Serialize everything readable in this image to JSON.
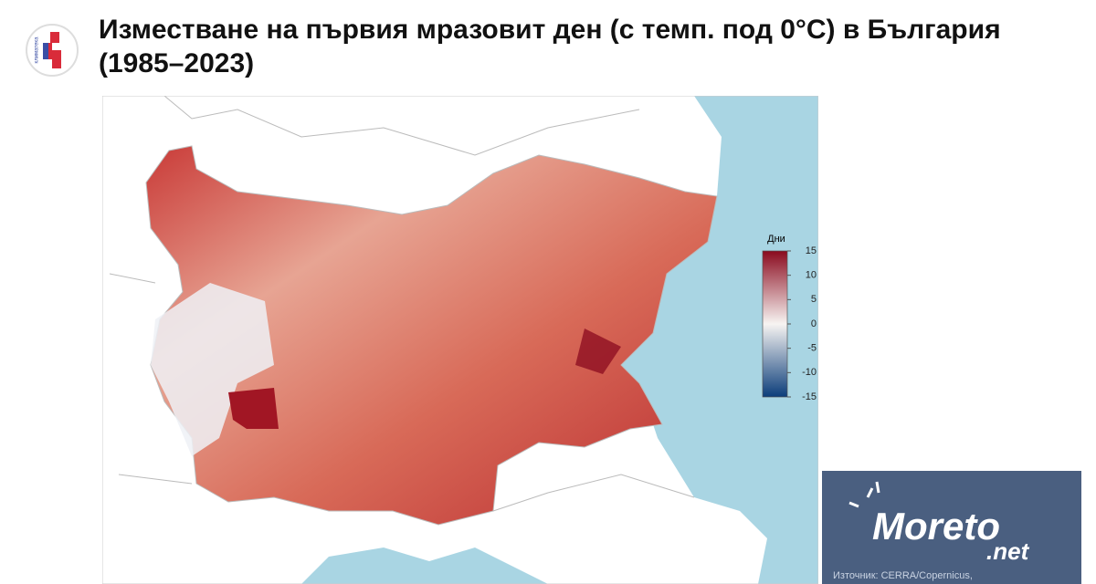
{
  "header": {
    "logo_text": "климатека",
    "title": "Изместване на първия мразовит ден (с темп. под 0°C) в България (1985–2023)"
  },
  "colorbar": {
    "title": "Дни",
    "lim": [
      -15,
      15
    ],
    "ticks": [
      15,
      10,
      5,
      0,
      -5,
      -10,
      -15
    ],
    "colors": [
      "#0b3d7a",
      "#f7f4f2",
      "#8a0a1e"
    ]
  },
  "watermark": {
    "brand": "Moreto",
    "suffix": ".net",
    "source": "Източник: CERRA/Copernicus,"
  }
}
